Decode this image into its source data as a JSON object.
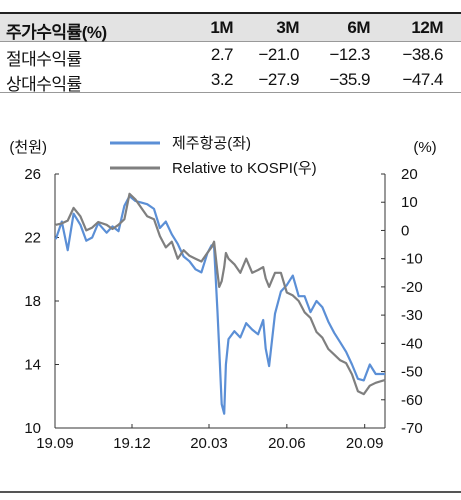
{
  "returns_table": {
    "header": {
      "label": "주가수익률(%)",
      "periods": [
        "1M",
        "3M",
        "6M",
        "12M"
      ]
    },
    "rows": [
      {
        "label": "절대수익률",
        "values": [
          "2.7",
          "−21.0",
          "−12.3",
          "−38.6"
        ]
      },
      {
        "label": "상대수익률",
        "values": [
          "3.2",
          "−27.9",
          "−35.9",
          "−47.4"
        ]
      }
    ]
  },
  "chart_data": {
    "type": "line",
    "left_axis_unit": "(천원)",
    "right_axis_unit": "(%)",
    "left_ylim": [
      10,
      26
    ],
    "left_ticks": [
      "26",
      "22",
      "18",
      "14",
      "10"
    ],
    "right_ylim": [
      -70,
      20
    ],
    "right_ticks": [
      "20",
      "10",
      "0",
      "-10",
      "-20",
      "-30",
      "-40",
      "-50",
      "-60",
      "-70"
    ],
    "x_ticks": [
      "19.09",
      "19.12",
      "20.03",
      "20.06",
      "20.09"
    ],
    "x_range": [
      "2019-09-01",
      "2020-09-25"
    ],
    "legend_position": "top-center",
    "series": [
      {
        "name": "제주항공(좌)",
        "axis": "left",
        "color": "#5b8fd6",
        "points": [
          [
            "2019-09-02",
            21.9
          ],
          [
            "2019-09-09",
            23.0
          ],
          [
            "2019-09-16",
            21.2
          ],
          [
            "2019-09-23",
            23.5
          ],
          [
            "2019-10-01",
            22.8
          ],
          [
            "2019-10-08",
            21.8
          ],
          [
            "2019-10-15",
            22.0
          ],
          [
            "2019-10-22",
            22.9
          ],
          [
            "2019-11-01",
            22.3
          ],
          [
            "2019-11-08",
            22.7
          ],
          [
            "2019-11-15",
            22.4
          ],
          [
            "2019-11-22",
            24.0
          ],
          [
            "2019-11-28",
            24.6
          ],
          [
            "2019-12-05",
            24.3
          ],
          [
            "2019-12-12",
            24.2
          ],
          [
            "2019-12-19",
            24.1
          ],
          [
            "2019-12-27",
            23.8
          ],
          [
            "2020-01-03",
            22.6
          ],
          [
            "2020-01-10",
            23.0
          ],
          [
            "2020-01-17",
            22.2
          ],
          [
            "2020-01-24",
            21.6
          ],
          [
            "2020-01-31",
            20.8
          ],
          [
            "2020-02-07",
            20.5
          ],
          [
            "2020-02-14",
            20.0
          ],
          [
            "2020-02-21",
            19.8
          ],
          [
            "2020-02-28",
            21.0
          ],
          [
            "2020-03-04",
            21.5
          ],
          [
            "2020-03-07",
            21.4
          ],
          [
            "2020-03-11",
            17.3
          ],
          [
            "2020-03-13",
            15.0
          ],
          [
            "2020-03-16",
            11.5
          ],
          [
            "2020-03-19",
            10.9
          ],
          [
            "2020-03-21",
            14.0
          ],
          [
            "2020-03-24",
            15.6
          ],
          [
            "2020-03-31",
            16.1
          ],
          [
            "2020-04-07",
            15.7
          ],
          [
            "2020-04-14",
            16.6
          ],
          [
            "2020-04-21",
            16.2
          ],
          [
            "2020-04-28",
            15.9
          ],
          [
            "2020-05-04",
            16.8
          ],
          [
            "2020-05-07",
            15.0
          ],
          [
            "2020-05-11",
            13.9
          ],
          [
            "2020-05-18",
            17.2
          ],
          [
            "2020-05-25",
            18.6
          ],
          [
            "2020-06-01",
            19.0
          ],
          [
            "2020-06-08",
            19.6
          ],
          [
            "2020-06-15",
            18.3
          ],
          [
            "2020-06-22",
            18.3
          ],
          [
            "2020-06-29",
            17.3
          ],
          [
            "2020-07-06",
            18.0
          ],
          [
            "2020-07-13",
            17.6
          ],
          [
            "2020-07-20",
            16.7
          ],
          [
            "2020-07-27",
            16.0
          ],
          [
            "2020-08-03",
            15.4
          ],
          [
            "2020-08-10",
            14.8
          ],
          [
            "2020-08-17",
            14.0
          ],
          [
            "2020-08-24",
            13.1
          ],
          [
            "2020-08-31",
            13.0
          ],
          [
            "2020-09-07",
            14.0
          ],
          [
            "2020-09-14",
            13.4
          ],
          [
            "2020-09-25",
            13.4
          ]
        ]
      },
      {
        "name": "Relative to KOSPI(우)",
        "axis": "right",
        "color": "#7f7f7f",
        "points": [
          [
            "2019-09-02",
            2.0
          ],
          [
            "2019-09-09",
            2.5
          ],
          [
            "2019-09-16",
            3.5
          ],
          [
            "2019-09-23",
            8.0
          ],
          [
            "2019-10-01",
            5.0
          ],
          [
            "2019-10-08",
            0.0
          ],
          [
            "2019-10-15",
            1.0
          ],
          [
            "2019-10-22",
            3.0
          ],
          [
            "2019-11-01",
            2.0
          ],
          [
            "2019-11-08",
            0.5
          ],
          [
            "2019-11-15",
            2.0
          ],
          [
            "2019-11-22",
            4.0
          ],
          [
            "2019-11-28",
            13.0
          ],
          [
            "2019-12-05",
            11.0
          ],
          [
            "2019-12-12",
            8.0
          ],
          [
            "2019-12-19",
            5.0
          ],
          [
            "2019-12-27",
            4.0
          ],
          [
            "2020-01-03",
            -2.0
          ],
          [
            "2020-01-10",
            -6.0
          ],
          [
            "2020-01-17",
            -4.0
          ],
          [
            "2020-01-24",
            -10.0
          ],
          [
            "2020-01-31",
            -7.0
          ],
          [
            "2020-02-07",
            -9.0
          ],
          [
            "2020-02-14",
            -10.0
          ],
          [
            "2020-02-21",
            -11.0
          ],
          [
            "2020-02-28",
            -8.0
          ],
          [
            "2020-03-04",
            -6.0
          ],
          [
            "2020-03-07",
            -4.0
          ],
          [
            "2020-03-11",
            -15.0
          ],
          [
            "2020-03-13",
            -20.0
          ],
          [
            "2020-03-16",
            -18.0
          ],
          [
            "2020-03-19",
            -13.0
          ],
          [
            "2020-03-21",
            -8.0
          ],
          [
            "2020-03-24",
            -10.0
          ],
          [
            "2020-03-31",
            -12.0
          ],
          [
            "2020-04-07",
            -15.0
          ],
          [
            "2020-04-14",
            -10.0
          ],
          [
            "2020-04-21",
            -15.0
          ],
          [
            "2020-04-28",
            -14.0
          ],
          [
            "2020-05-04",
            -13.0
          ],
          [
            "2020-05-07",
            -17.0
          ],
          [
            "2020-05-11",
            -20.0
          ],
          [
            "2020-05-18",
            -15.0
          ],
          [
            "2020-05-25",
            -15.0
          ],
          [
            "2020-06-01",
            -22.0
          ],
          [
            "2020-06-08",
            -23.0
          ],
          [
            "2020-06-15",
            -25.0
          ],
          [
            "2020-06-22",
            -29.0
          ],
          [
            "2020-06-29",
            -31.0
          ],
          [
            "2020-07-06",
            -36.0
          ],
          [
            "2020-07-13",
            -38.0
          ],
          [
            "2020-07-20",
            -42.0
          ],
          [
            "2020-07-27",
            -44.0
          ],
          [
            "2020-08-03",
            -46.0
          ],
          [
            "2020-08-10",
            -47.0
          ],
          [
            "2020-08-17",
            -51.0
          ],
          [
            "2020-08-24",
            -57.0
          ],
          [
            "2020-08-31",
            -58.0
          ],
          [
            "2020-09-07",
            -55.0
          ],
          [
            "2020-09-14",
            -54.0
          ],
          [
            "2020-09-25",
            -53.0
          ]
        ]
      }
    ]
  }
}
